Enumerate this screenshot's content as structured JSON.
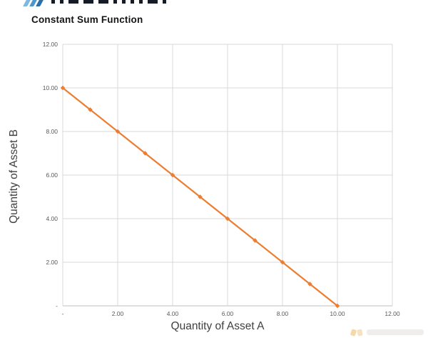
{
  "header": {
    "title": "Constant Sum Function"
  },
  "chart_data": {
    "type": "line",
    "title": "Constant Sum Function",
    "xlabel": "Quantity of Asset A",
    "ylabel": "Quantity of Asset B",
    "x": [
      0,
      1,
      2,
      3,
      4,
      5,
      6,
      7,
      8,
      9,
      10
    ],
    "series": [
      {
        "name": "Constant Sum Function",
        "values": [
          10,
          9,
          8,
          7,
          6,
          5,
          4,
          3,
          2,
          1,
          0
        ]
      }
    ],
    "xlim": [
      0,
      12
    ],
    "ylim": [
      0,
      12
    ],
    "x_tick_values": [
      0,
      2,
      4,
      6,
      8,
      10,
      12
    ],
    "x_tick_labels": [
      "-",
      "2.00",
      "4.00",
      "6.00",
      "8.00",
      "10.00",
      "12.00"
    ],
    "y_tick_values": [
      0,
      2,
      4,
      6,
      8,
      10,
      12
    ],
    "y_tick_labels": [
      "-",
      "2.00",
      "4.00",
      "6.00",
      "8.00",
      "10.00",
      "12.00"
    ],
    "grid": true,
    "legend": "none",
    "line_color": "#ED7D31",
    "marker": "diamond",
    "marker_color": "#ED7D31",
    "gridline_color": "#D9D9D9",
    "axis_line_color": "#BFBFBF",
    "tick_label_color": "#595959",
    "axis_title_color": "#3F3F3F"
  }
}
